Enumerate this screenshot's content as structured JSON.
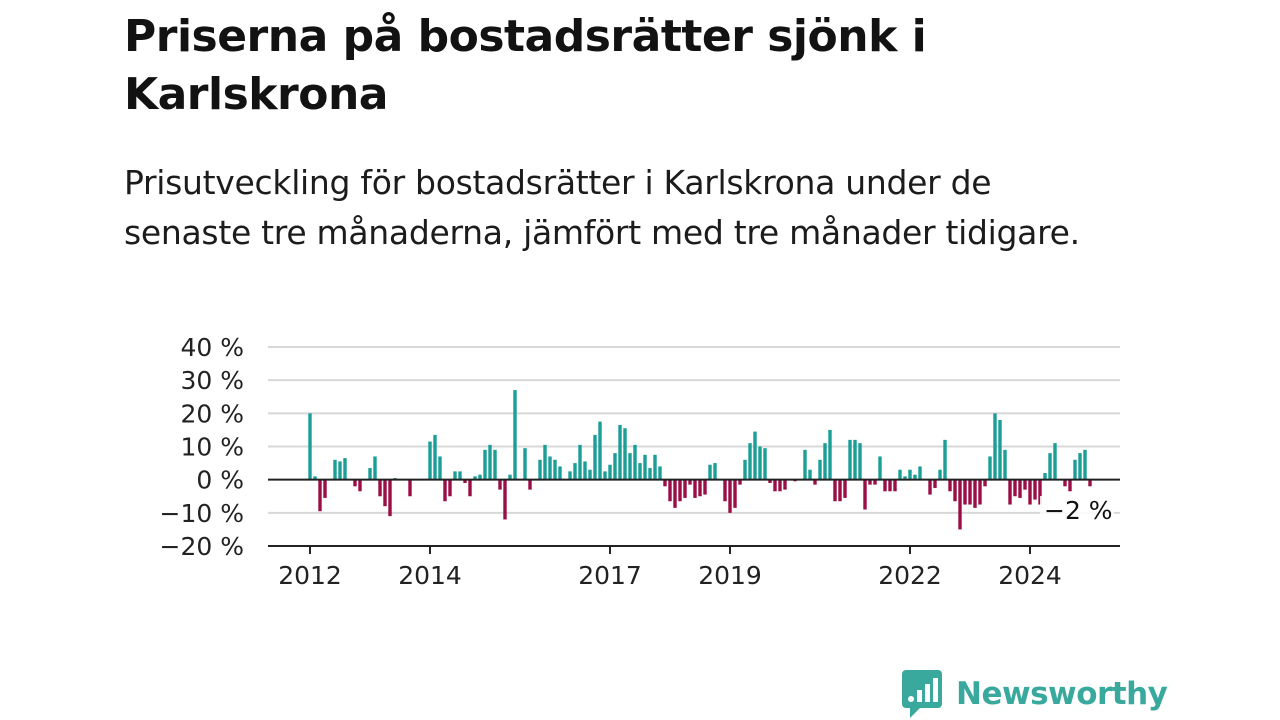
{
  "header": {
    "title": "Priserna på bostadsrätter sjönk i Karlskrona",
    "subtitle": "Prisutveckling för bostadsrätter i Karlskrona under de senaste tre månaderna, jämfört med tre månader tidigare."
  },
  "colors": {
    "positive": "#1a9e96",
    "negative": "#9b0d47",
    "grid": "#d8d8d8",
    "axis": "#222222",
    "brand": "#3aa99d"
  },
  "brand": {
    "name": "Newsworthy"
  },
  "chart_data": {
    "type": "bar",
    "ylim": [
      -20,
      40
    ],
    "y_ticks": [
      40,
      30,
      20,
      10,
      0,
      -10,
      -20
    ],
    "y_tick_labels": [
      "40 %",
      "30 %",
      "20 %",
      "10 %",
      "0 %",
      "−10 %",
      "−20 %"
    ],
    "x_ticks": [
      {
        "label": "2012",
        "index": 0
      },
      {
        "label": "2014",
        "index": 24
      },
      {
        "label": "2017",
        "index": 60
      },
      {
        "label": "2019",
        "index": 84
      },
      {
        "label": "2022",
        "index": 120
      },
      {
        "label": "2024",
        "index": 144
      }
    ],
    "grid": true,
    "first_period": "2012-01",
    "frequency": "monthly",
    "values": [
      20,
      1,
      -9.5,
      -5.5,
      0,
      6,
      5.5,
      6.5,
      0,
      -2,
      -3.5,
      0,
      3.5,
      7,
      -5,
      -8,
      -11,
      0.5,
      0,
      0,
      -5,
      0,
      0,
      0,
      11.5,
      13.5,
      7,
      -6.5,
      -5,
      2.5,
      2.5,
      -1,
      -5,
      1,
      1.5,
      9,
      10.5,
      9,
      -3,
      -12,
      1.5,
      27,
      0,
      9.5,
      -3,
      0,
      6,
      10.5,
      7,
      6,
      4,
      0,
      2.5,
      5,
      10.5,
      5.5,
      3,
      13.5,
      17.5,
      2.5,
      4.5,
      8,
      16.5,
      15.5,
      8,
      10.5,
      5,
      7.5,
      3.5,
      7.5,
      4,
      -2,
      -6.5,
      -8.5,
      -6.5,
      -5.5,
      -1.5,
      -5.5,
      -5,
      -4.5,
      4.5,
      5,
      0,
      -6.5,
      -10,
      -8.5,
      -1.5,
      6,
      11,
      14.5,
      10,
      9.5,
      -1,
      -3.5,
      -3.5,
      -3,
      0,
      -0.5,
      0,
      9,
      3,
      -1.5,
      6,
      11,
      15,
      -6.5,
      -6.5,
      -5.5,
      12,
      12,
      11,
      -9,
      -1.5,
      -1.5,
      7,
      -3.5,
      -3.5,
      -3.5,
      3,
      1,
      3,
      1.5,
      4,
      0,
      -4.5,
      -2.5,
      3,
      12,
      -3.5,
      -6.5,
      -15,
      -7.5,
      -7.5,
      -8.5,
      -7.5,
      -2,
      7,
      20,
      18,
      9,
      -7.5,
      -5,
      -5.5,
      -3,
      -7.5,
      -6,
      -7.5,
      2,
      8,
      11,
      0,
      -2,
      -3.5,
      6,
      8,
      9,
      -2
    ],
    "annotation": {
      "label": "−2 %",
      "index": 156
    }
  }
}
